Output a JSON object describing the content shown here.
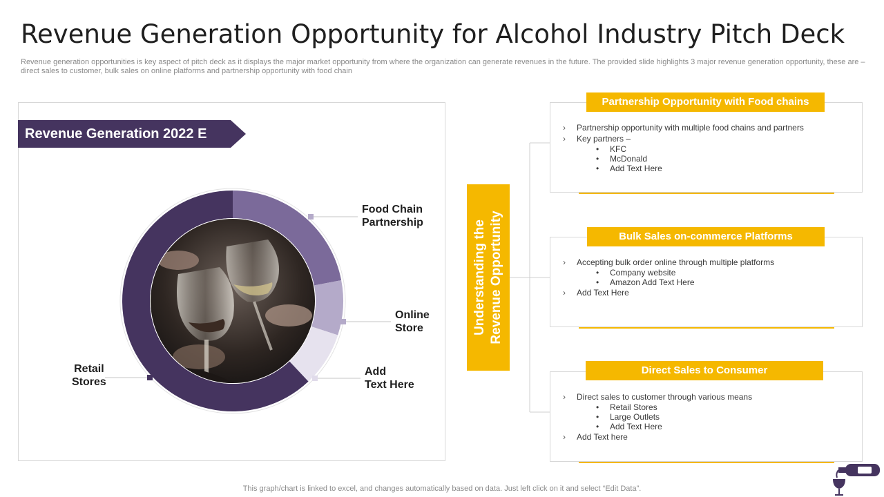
{
  "header": {
    "title": "Revenue Generation Opportunity for Alcohol Industry Pitch Deck",
    "subtitle": "Revenue generation opportunities is key aspect of pitch deck as it displays the major market opportunity from where the organization can generate revenues in the future.  The provided slide highlights 3 major revenue generation opportunity, these are – direct sales to customer, bulk sales on online platforms and partnership opportunity with food chain"
  },
  "left": {
    "banner": "Revenue Generation 2022 E",
    "labels": {
      "food": "Food Chain\nPartnership",
      "online": "Online\nStore",
      "add": "Add\nText Here",
      "retail": "Retail\nStores"
    }
  },
  "chart_data": {
    "type": "pie",
    "categories": [
      "Food Chain Partnership",
      "Online Store",
      "Add Text Here",
      "Retail Stores"
    ],
    "values": [
      22,
      8,
      8,
      62
    ],
    "colors": [
      "#7b6a9a",
      "#b4aac9",
      "#e6e2ee",
      "#45345f"
    ]
  },
  "middle": {
    "vertical_text_line1": "Understanding the",
    "vertical_text_line2": "Revenue Opportunity"
  },
  "cards": [
    {
      "title": "Partnership Opportunity with Food chains",
      "items": [
        {
          "text": "Partnership opportunity  with multiple food chains and partners",
          "subs": []
        },
        {
          "text": "Key partners –",
          "subs": [
            "KFC",
            "McDonald",
            "Add Text Here"
          ]
        }
      ]
    },
    {
      "title": "Bulk Sales on-commerce Platforms",
      "items": [
        {
          "text": "Accepting bulk order online through  multiple platforms",
          "subs": [
            "Company website",
            "Amazon Add Text Here"
          ]
        },
        {
          "text": "Add Text Here",
          "subs": []
        }
      ]
    },
    {
      "title": "Direct Sales to Consumer",
      "items": [
        {
          "text": "Direct sales to customer  through various  means",
          "subs": [
            "Retail Stores",
            "Large Outlets",
            "Add Text Here"
          ]
        },
        {
          "text": "Add Text here",
          "subs": []
        }
      ]
    }
  ],
  "footer": "This graph/chart is linked to excel,  and changes automatically based on data. Just left click on it and select “Edit Data”.",
  "icons": {
    "bullet": "›",
    "sub_bullet": "•",
    "logo": "wine-pour-icon"
  }
}
